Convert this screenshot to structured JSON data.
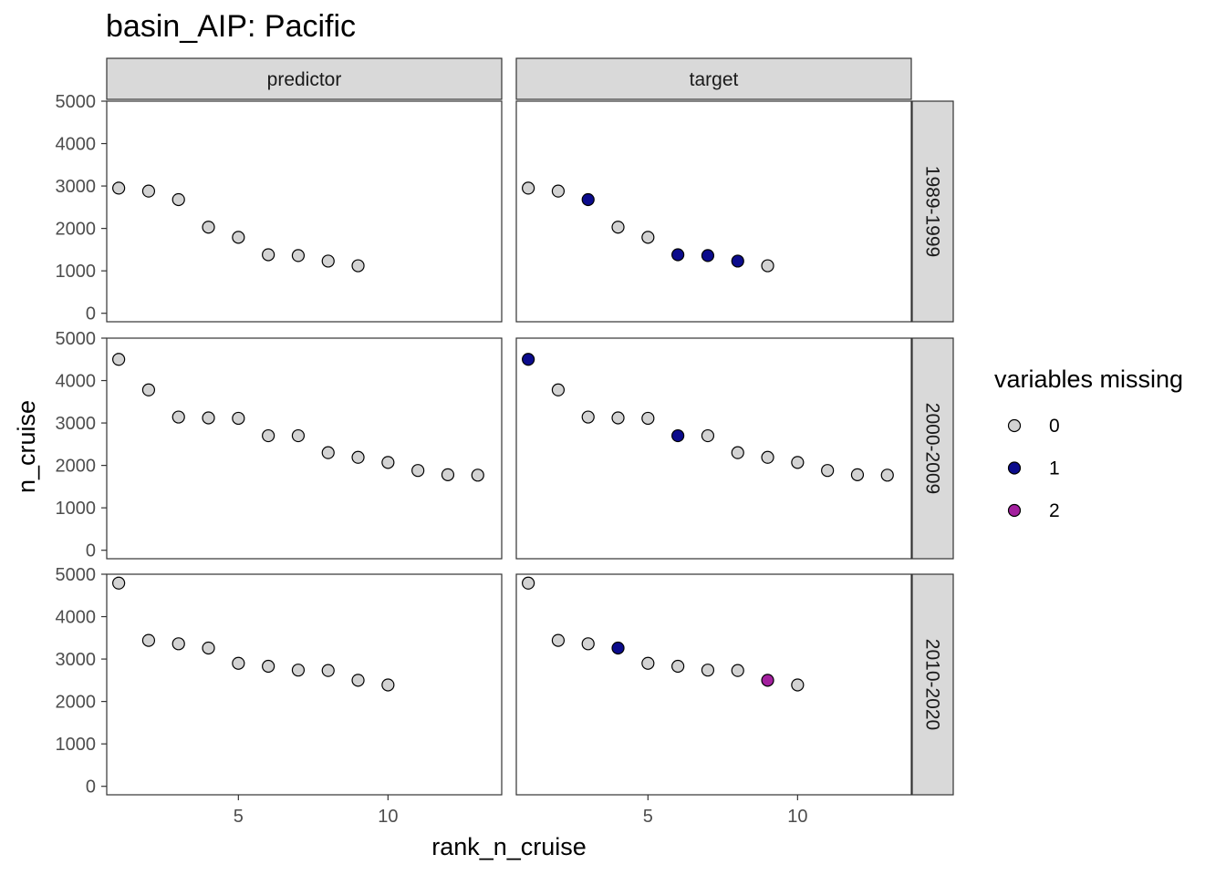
{
  "chart_data": {
    "type": "scatter",
    "title": "basin_AIP: Pacific",
    "xlabel": "rank_n_cruise",
    "ylabel": "n_cruise",
    "xlim": [
      0.6,
      13.8
    ],
    "ylim": [
      -200,
      5000
    ],
    "x_ticks": [
      5,
      10
    ],
    "y_ticks": [
      0,
      1000,
      2000,
      3000,
      4000,
      5000
    ],
    "grid": false,
    "columns": [
      "predictor",
      "target"
    ],
    "rows": [
      "1989-1999",
      "2000-2009",
      "2010-2020"
    ],
    "legend": {
      "title": "variables missing",
      "position": "right",
      "entries": [
        {
          "label": "0",
          "color": "#d3d3d3"
        },
        {
          "label": "1",
          "color": "#0b0b8c"
        },
        {
          "label": "2",
          "color": "#a3209e"
        }
      ]
    },
    "panels": [
      {
        "column": "predictor",
        "row": "1989-1999",
        "points": [
          [
            1,
            2950,
            0
          ],
          [
            2,
            2880,
            0
          ],
          [
            3,
            2680,
            0
          ],
          [
            4,
            2030,
            0
          ],
          [
            5,
            1790,
            0
          ],
          [
            6,
            1380,
            0
          ],
          [
            7,
            1360,
            0
          ],
          [
            8,
            1230,
            0
          ],
          [
            9,
            1120,
            0
          ]
        ]
      },
      {
        "column": "target",
        "row": "1989-1999",
        "points": [
          [
            1,
            2950,
            0
          ],
          [
            2,
            2880,
            0
          ],
          [
            3,
            2680,
            1
          ],
          [
            4,
            2030,
            0
          ],
          [
            5,
            1790,
            0
          ],
          [
            6,
            1380,
            1
          ],
          [
            7,
            1360,
            1
          ],
          [
            8,
            1230,
            1
          ],
          [
            9,
            1120,
            0
          ]
        ]
      },
      {
        "column": "predictor",
        "row": "2000-2009",
        "points": [
          [
            1,
            4500,
            0
          ],
          [
            2,
            3780,
            0
          ],
          [
            3,
            3140,
            0
          ],
          [
            4,
            3120,
            0
          ],
          [
            5,
            3110,
            0
          ],
          [
            6,
            2700,
            0
          ],
          [
            7,
            2700,
            0
          ],
          [
            8,
            2300,
            0
          ],
          [
            9,
            2190,
            0
          ],
          [
            10,
            2070,
            0
          ],
          [
            11,
            1880,
            0
          ],
          [
            12,
            1780,
            0
          ],
          [
            13,
            1770,
            0
          ]
        ]
      },
      {
        "column": "target",
        "row": "2000-2009",
        "points": [
          [
            1,
            4500,
            1
          ],
          [
            2,
            3780,
            0
          ],
          [
            3,
            3140,
            0
          ],
          [
            4,
            3120,
            0
          ],
          [
            5,
            3110,
            0
          ],
          [
            6,
            2700,
            1
          ],
          [
            7,
            2700,
            0
          ],
          [
            8,
            2300,
            0
          ],
          [
            9,
            2190,
            0
          ],
          [
            10,
            2070,
            0
          ],
          [
            11,
            1880,
            0
          ],
          [
            12,
            1780,
            0
          ],
          [
            13,
            1770,
            0
          ]
        ]
      },
      {
        "column": "predictor",
        "row": "2010-2020",
        "points": [
          [
            1,
            4790,
            0
          ],
          [
            2,
            3440,
            0
          ],
          [
            3,
            3360,
            0
          ],
          [
            4,
            3260,
            0
          ],
          [
            5,
            2900,
            0
          ],
          [
            6,
            2830,
            0
          ],
          [
            7,
            2740,
            0
          ],
          [
            8,
            2730,
            0
          ],
          [
            9,
            2500,
            0
          ],
          [
            10,
            2390,
            0
          ]
        ]
      },
      {
        "column": "target",
        "row": "2010-2020",
        "points": [
          [
            1,
            4790,
            0
          ],
          [
            2,
            3440,
            0
          ],
          [
            3,
            3360,
            0
          ],
          [
            4,
            3260,
            1
          ],
          [
            5,
            2900,
            0
          ],
          [
            6,
            2830,
            0
          ],
          [
            7,
            2740,
            0
          ],
          [
            8,
            2730,
            0
          ],
          [
            9,
            2500,
            2
          ],
          [
            10,
            2390,
            0
          ]
        ]
      }
    ]
  }
}
